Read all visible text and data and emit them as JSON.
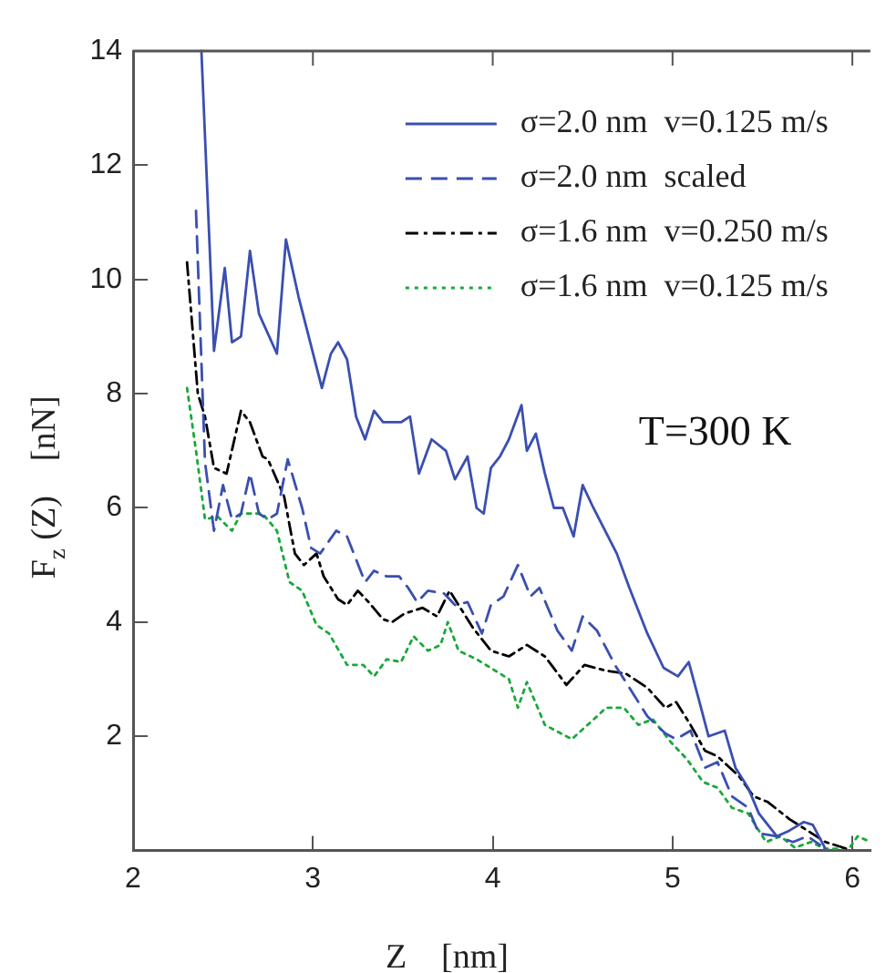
{
  "chart_data": {
    "type": "line",
    "xlabel": "Z    [nm]",
    "ylabel": "F$_{z}$ (Z)    [nN]",
    "xlim": [
      2,
      6.1
    ],
    "ylim": [
      0,
      14
    ],
    "xticks": [
      2,
      3,
      4,
      5,
      6
    ],
    "yticks": [
      2,
      4,
      6,
      8,
      10,
      12,
      14
    ],
    "grid": false,
    "legend": "top right",
    "marker": "none",
    "annotations": [
      "T=300 K"
    ],
    "series": [
      {
        "name": "σ=2.0 nm  v=0.125 m/s",
        "color": "#3a4fb0",
        "line_style": "solid",
        "x": [
          2.38,
          2.45,
          2.51,
          2.55,
          2.6,
          2.65,
          2.7,
          2.8,
          2.85,
          2.92,
          3.05,
          3.1,
          3.14,
          3.19,
          3.24,
          3.29,
          3.34,
          3.39,
          3.49,
          3.54,
          3.59,
          3.66,
          3.74,
          3.79,
          3.86,
          3.91,
          3.95,
          3.99,
          4.04,
          4.09,
          4.16,
          4.19,
          4.24,
          4.29,
          4.34,
          4.39,
          4.45,
          4.5,
          4.56,
          4.69,
          4.76,
          4.86,
          4.95,
          5.03,
          5.09,
          5.15,
          5.2,
          5.29,
          5.35,
          5.42,
          5.48,
          5.58,
          5.65,
          5.73,
          5.78,
          5.85
        ],
        "values": [
          14,
          8.75,
          10.2,
          8.9,
          9,
          10.5,
          9.4,
          8.7,
          10.7,
          9.7,
          8.1,
          8.7,
          8.9,
          8.6,
          7.6,
          7.2,
          7.7,
          7.5,
          7.5,
          7.6,
          6.6,
          7.2,
          7,
          6.5,
          6.9,
          6,
          5.9,
          6.7,
          6.9,
          7.2,
          7.8,
          7,
          7.3,
          6.6,
          6,
          6,
          5.5,
          6.4,
          6,
          5.2,
          4.6,
          3.8,
          3.2,
          3.05,
          3.3,
          2.6,
          2,
          2.1,
          1.45,
          1.1,
          0.65,
          0.25,
          0.35,
          0.5,
          0.45,
          0.03
        ]
      },
      {
        "name": "σ=2.0 nm  scaled",
        "color": "#3a4fb0",
        "line_style": "dashed",
        "x": [
          2.35,
          2.4,
          2.45,
          2.5,
          2.55,
          2.6,
          2.65,
          2.7,
          2.75,
          2.8,
          2.86,
          2.94,
          2.99,
          3.04,
          3.13,
          3.19,
          3.29,
          3.34,
          3.41,
          3.48,
          3.53,
          3.58,
          3.64,
          3.73,
          3.79,
          3.86,
          3.94,
          3.99,
          4.06,
          4.14,
          4.21,
          4.26,
          4.36,
          4.44,
          4.5,
          4.58,
          4.68,
          4.76,
          4.86,
          4.96,
          5.02,
          5.1,
          5.18,
          5.25,
          5.33,
          5.42,
          5.48,
          5.58,
          5.67,
          5.75,
          5.82
        ],
        "values": [
          11.2,
          6.8,
          5.6,
          6.4,
          5.8,
          5.9,
          6.6,
          5.9,
          5.8,
          5.9,
          6.85,
          6,
          5.3,
          5.2,
          5.6,
          5.5,
          4.7,
          4.9,
          4.8,
          4.8,
          4.6,
          4.35,
          4.55,
          4.5,
          4.3,
          4.35,
          3.8,
          4.3,
          4.45,
          5,
          4.45,
          4.6,
          3.85,
          3.5,
          4.1,
          3.85,
          3.25,
          2.85,
          2.35,
          2.05,
          1.95,
          2.1,
          1.45,
          1.55,
          0.95,
          0.75,
          0.3,
          0.25,
          0.15,
          0.25,
          0.1
        ]
      },
      {
        "name": "σ=1.6 nm  v=0.250 m/s",
        "color": "#000000",
        "line_style": "dashdot",
        "x": [
          2.3,
          2.36,
          2.4,
          2.45,
          2.52,
          2.6,
          2.65,
          2.72,
          2.75,
          2.84,
          2.9,
          2.95,
          3.02,
          3.06,
          3.14,
          3.19,
          3.25,
          3.31,
          3.39,
          3.44,
          3.51,
          3.61,
          3.69,
          3.76,
          3.83,
          3.89,
          3.99,
          4.09,
          4.19,
          4.29,
          4.41,
          4.51,
          4.63,
          4.74,
          4.86,
          4.96,
          5.02,
          5.1,
          5.18,
          5.25,
          5.37,
          5.45,
          5.53,
          5.65,
          5.75,
          5.85,
          5.97
        ],
        "values": [
          10.3,
          8,
          7.6,
          6.7,
          6.6,
          7.7,
          7.5,
          6.9,
          6.85,
          6.2,
          5.2,
          5,
          5.2,
          4.8,
          4.4,
          4.3,
          4.55,
          4.35,
          4.05,
          4,
          4.15,
          4.25,
          4.1,
          4.55,
          4.2,
          3.9,
          3.5,
          3.4,
          3.6,
          3.4,
          2.9,
          3.25,
          3.15,
          3.1,
          2.85,
          2.5,
          2.6,
          2.2,
          1.75,
          1.65,
          1.3,
          0.95,
          0.85,
          0.55,
          0.35,
          0.15,
          0.03
        ]
      },
      {
        "name": "σ=1.6 nm  v=0.125 m/s",
        "color": "#1aa83c",
        "line_style": "dotted",
        "x": [
          2.3,
          2.35,
          2.4,
          2.47,
          2.55,
          2.6,
          2.72,
          2.8,
          2.87,
          2.94,
          3.02,
          3.09,
          3.19,
          3.28,
          3.34,
          3.41,
          3.49,
          3.56,
          3.64,
          3.71,
          3.75,
          3.81,
          3.91,
          4.04,
          4.09,
          4.14,
          4.19,
          4.29,
          4.44,
          4.58,
          4.63,
          4.73,
          4.81,
          4.89,
          4.99,
          5.08,
          5.17,
          5.25,
          5.33,
          5.42,
          5.52,
          5.6,
          5.68,
          5.77,
          5.85,
          5.98,
          6.03,
          6.1
        ],
        "values": [
          8.1,
          7,
          5.8,
          5.85,
          5.6,
          5.9,
          5.9,
          5.6,
          4.7,
          4.55,
          3.95,
          3.8,
          3.25,
          3.25,
          3.05,
          3.35,
          3.3,
          3.75,
          3.5,
          3.6,
          4,
          3.5,
          3.35,
          3.1,
          3,
          2.5,
          2.95,
          2.2,
          1.95,
          2.35,
          2.5,
          2.5,
          2.2,
          2.3,
          1.9,
          1.6,
          1.2,
          1.1,
          0.75,
          0.65,
          0.15,
          0.25,
          0.05,
          0.15,
          0.03,
          0.03,
          0.25,
          0.15
        ]
      }
    ]
  }
}
